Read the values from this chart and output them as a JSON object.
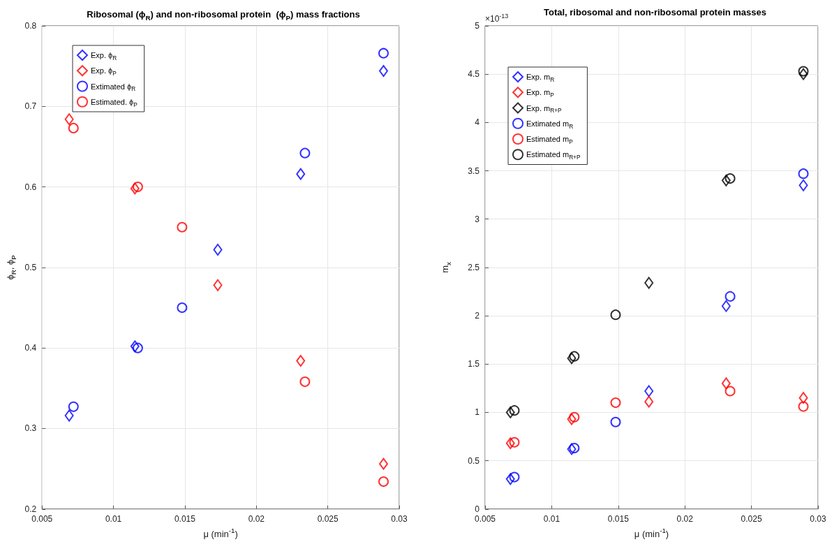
{
  "chart_data": [
    {
      "type": "scatter",
      "title": "Ribosomal (ϕ$_{R}$) and non-ribosomal protein  (ϕ$_{P}$) mass fractions",
      "xlabel": "μ (min$^{-1}$)",
      "ylabel": "ϕ$_{R}$, ϕ$_{P}$",
      "xlim": [
        0.005,
        0.03
      ],
      "xticks": [
        0.005,
        0.01,
        0.015,
        0.02,
        0.025,
        0.03
      ],
      "ylim": [
        0.2,
        0.8
      ],
      "yticks": [
        0.2,
        0.3,
        0.4,
        0.5,
        0.6,
        0.7,
        0.8
      ],
      "grid": true,
      "legend": "top left",
      "series": [
        {
          "name": "Exp. ϕ$_{R}$",
          "color": "#0000ff",
          "marker": "diamond",
          "x": [
            0.0069,
            0.0115,
            0.0173,
            0.0231,
            0.0289
          ],
          "values": [
            0.316,
            0.402,
            0.522,
            0.616,
            0.744
          ]
        },
        {
          "name": "Exp. ϕ$_{P}$",
          "color": "#ff0000",
          "marker": "diamond",
          "x": [
            0.0069,
            0.0115,
            0.0173,
            0.0231,
            0.0289
          ],
          "values": [
            0.684,
            0.598,
            0.478,
            0.384,
            0.256
          ]
        },
        {
          "name": "Extimated ϕ$_{R}$",
          "color": "#0000ff",
          "marker": "circle",
          "x": [
            0.0072,
            0.0117,
            0.0148,
            0.0234,
            0.0289
          ],
          "values": [
            0.327,
            0.4,
            0.45,
            0.642,
            0.766
          ]
        },
        {
          "name": "Estimated. ϕ$_{P}$",
          "color": "#ff0000",
          "marker": "circle",
          "x": [
            0.0072,
            0.0117,
            0.0148,
            0.0234,
            0.0289
          ],
          "values": [
            0.673,
            0.6,
            0.55,
            0.358,
            0.234
          ]
        }
      ]
    },
    {
      "type": "scatter",
      "title": "Total, ribosomal and non-ribosomal protein masses",
      "xlabel": "μ (min$^{-1}$)",
      "ylabel": "m$_{x}$",
      "annotations": [
        "×10$^{-13}$"
      ],
      "xlim": [
        0.005,
        0.03
      ],
      "xticks": [
        0.005,
        0.01,
        0.015,
        0.02,
        0.025,
        0.03
      ],
      "ylim": [
        0,
        5
      ],
      "yticks": [
        0,
        0.5,
        1,
        1.5,
        2,
        2.5,
        3,
        3.5,
        4,
        4.5,
        5
      ],
      "grid": true,
      "legend": "top left",
      "series": [
        {
          "name": "Exp. m$_{R}$",
          "color": "#0000ff",
          "marker": "diamond",
          "x": [
            0.0069,
            0.0115,
            0.0173,
            0.0231,
            0.0289
          ],
          "values": [
            0.31,
            0.62,
            1.22,
            2.1,
            3.35
          ]
        },
        {
          "name": "Exp. m$_{P}$",
          "color": "#ff0000",
          "marker": "diamond",
          "x": [
            0.0069,
            0.0115,
            0.0173,
            0.0231,
            0.0289
          ],
          "values": [
            0.68,
            0.93,
            1.11,
            1.3,
            1.15
          ]
        },
        {
          "name": "Exp. m$_{R+P}$",
          "color": "#000000",
          "marker": "diamond",
          "x": [
            0.0069,
            0.0115,
            0.0173,
            0.0231,
            0.0289
          ],
          "values": [
            1.0,
            1.56,
            2.34,
            3.4,
            4.5
          ]
        },
        {
          "name": "Extimated m$_{R}$",
          "color": "#0000ff",
          "marker": "circle",
          "x": [
            0.0072,
            0.0117,
            0.0148,
            0.0234,
            0.0289
          ],
          "values": [
            0.33,
            0.63,
            0.9,
            2.2,
            3.47
          ]
        },
        {
          "name": "Estimated m$_{P}$",
          "color": "#ff0000",
          "marker": "circle",
          "x": [
            0.0072,
            0.0117,
            0.0148,
            0.0234,
            0.0289
          ],
          "values": [
            0.69,
            0.95,
            1.1,
            1.22,
            1.06
          ]
        },
        {
          "name": "Estimated m$_{R+P}$",
          "color": "#000000",
          "marker": "circle",
          "x": [
            0.0072,
            0.0117,
            0.0148,
            0.0234,
            0.0289
          ],
          "values": [
            1.02,
            1.58,
            2.01,
            3.42,
            4.53
          ]
        }
      ]
    }
  ]
}
